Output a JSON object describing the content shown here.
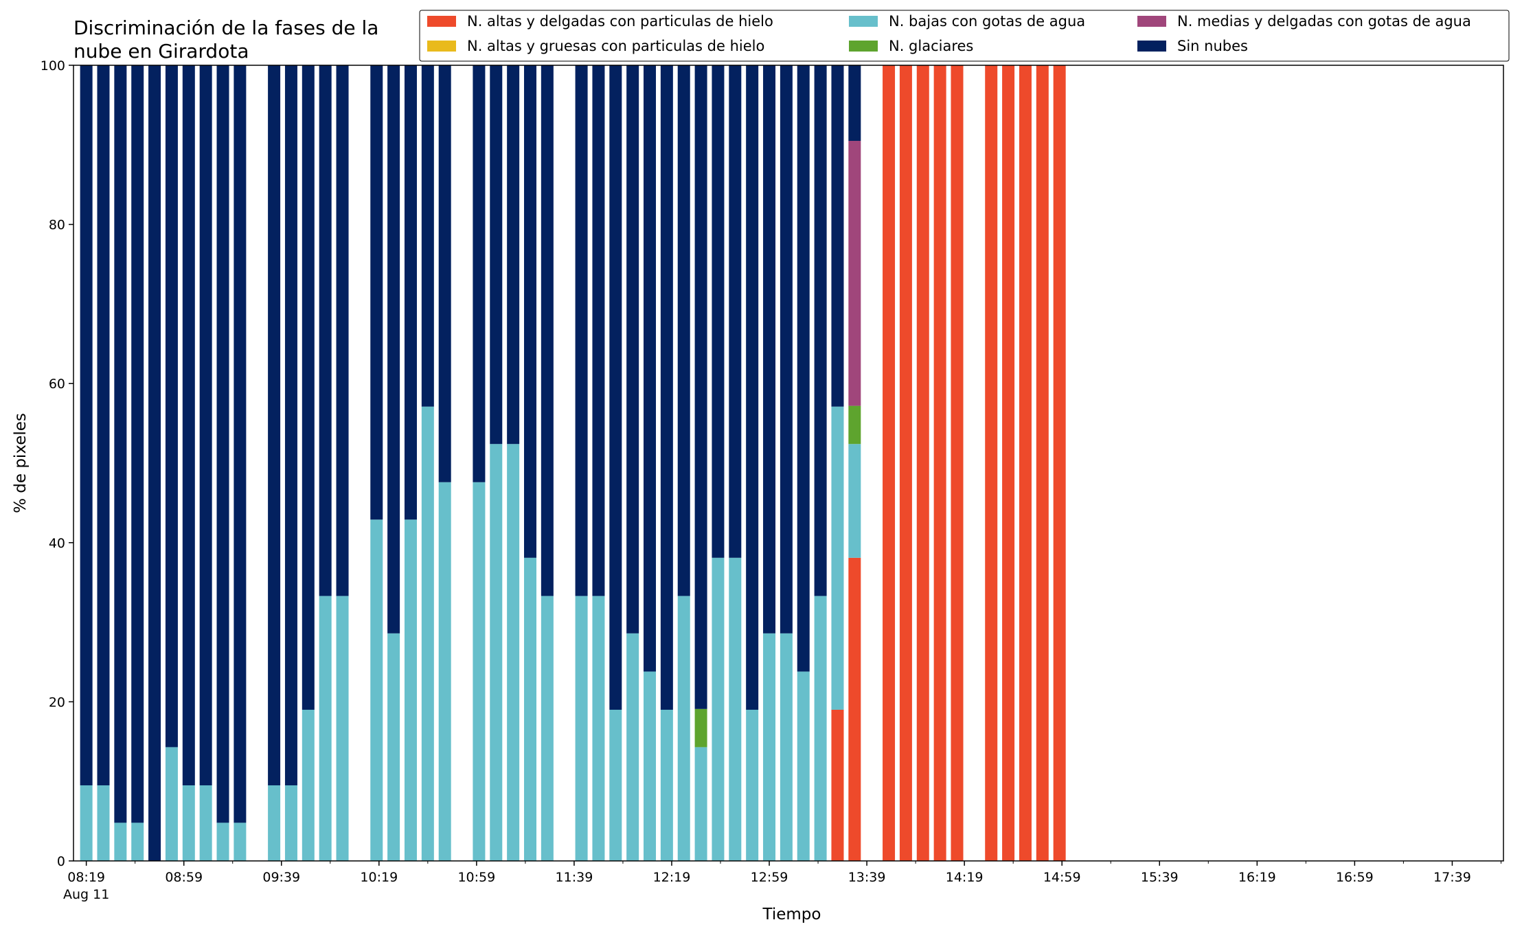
{
  "chart_data": {
    "type": "bar",
    "stacked": true,
    "title_lines": [
      "Discriminación de la fases de la",
      "nube en Girardota"
    ],
    "xlabel": "Tiempo",
    "ylabel": "% de pixeles",
    "ylim": [
      0,
      100
    ],
    "yticks": [
      "0",
      "20",
      "40",
      "60",
      "80",
      "100"
    ],
    "x_start": "08:19",
    "x_step_minutes": 7,
    "x_end": "18:00",
    "xtick_labels": [
      {
        "time": "08:19",
        "label": "08:19",
        "sublabel": "Aug 11"
      },
      {
        "time": "08:59",
        "label": "08:59"
      },
      {
        "time": "09:39",
        "label": "09:39"
      },
      {
        "time": "10:19",
        "label": "10:19"
      },
      {
        "time": "10:59",
        "label": "10:59"
      },
      {
        "time": "11:39",
        "label": "11:39"
      },
      {
        "time": "12:19",
        "label": "12:19"
      },
      {
        "time": "12:59",
        "label": "12:59"
      },
      {
        "time": "13:39",
        "label": "13:39"
      },
      {
        "time": "14:19",
        "label": "14:19"
      },
      {
        "time": "14:59",
        "label": "14:59"
      },
      {
        "time": "15:39",
        "label": "15:39"
      },
      {
        "time": "16:19",
        "label": "16:19"
      },
      {
        "time": "16:59",
        "label": "16:59"
      },
      {
        "time": "17:39",
        "label": "17:39"
      }
    ],
    "minor_tick_times": [
      "08:39",
      "09:19",
      "09:59",
      "10:39",
      "11:19",
      "11:59",
      "12:39",
      "13:19",
      "13:59",
      "14:39",
      "15:19",
      "15:59",
      "16:39",
      "17:19",
      "17:59"
    ],
    "legend_placement": "top-right",
    "legend_columns": 3,
    "grid": false,
    "series": [
      {
        "name": "N. altas y delgadas con particulas de hielo",
        "color": "#ee4a2b"
      },
      {
        "name": "N. altas y gruesas con particulas de hielo",
        "color": "#e9ba1c"
      },
      {
        "name": "N. bajas con gotas de agua",
        "color": "#67bfcb"
      },
      {
        "name": "N. glaciares",
        "color": "#5ea42e"
      },
      {
        "name": "N. medias y delgadas con gotas de agua",
        "color": "#a0467b"
      },
      {
        "name": "Sin nubes",
        "color": "#03215f"
      }
    ],
    "stack_order": [
      "N. altas y delgadas con particulas de hielo",
      "N. altas y gruesas con particulas de hielo",
      "N. bajas con gotas de agua",
      "N. glaciares",
      "N. medias y delgadas con gotas de agua",
      "Sin nubes"
    ],
    "bars": [
      {
        "time": "08:19",
        "values": [
          0,
          0,
          9.5,
          0,
          0,
          90.5
        ]
      },
      {
        "time": "08:26",
        "values": [
          0,
          0,
          9.5,
          0,
          0,
          90.5
        ]
      },
      {
        "time": "08:33",
        "values": [
          0,
          0,
          4.8,
          0,
          0,
          95.2
        ]
      },
      {
        "time": "08:40",
        "values": [
          0,
          0,
          4.8,
          0,
          0,
          95.2
        ]
      },
      {
        "time": "08:47",
        "values": [
          0,
          0,
          0,
          0,
          0,
          100
        ]
      },
      {
        "time": "08:54",
        "values": [
          0,
          0,
          14.3,
          0,
          0,
          85.7
        ]
      },
      {
        "time": "09:01",
        "values": [
          0,
          0,
          9.5,
          0,
          0,
          90.5
        ]
      },
      {
        "time": "09:08",
        "values": [
          0,
          0,
          9.5,
          0,
          0,
          90.5
        ]
      },
      {
        "time": "09:15",
        "values": [
          0,
          0,
          4.8,
          0,
          0,
          95.2
        ]
      },
      {
        "time": "09:22",
        "values": [
          0,
          0,
          4.8,
          0,
          0,
          95.2
        ]
      },
      {
        "time": "09:36",
        "values": [
          0,
          0,
          9.5,
          0,
          0,
          90.5
        ]
      },
      {
        "time": "09:43",
        "values": [
          0,
          0,
          9.5,
          0,
          0,
          90.5
        ]
      },
      {
        "time": "09:50",
        "values": [
          0,
          0,
          19.0,
          0,
          0,
          81.0
        ]
      },
      {
        "time": "09:57",
        "values": [
          0,
          0,
          33.3,
          0,
          0,
          66.7
        ]
      },
      {
        "time": "10:04",
        "values": [
          0,
          0,
          33.3,
          0,
          0,
          66.7
        ]
      },
      {
        "time": "10:18",
        "values": [
          0,
          0,
          42.9,
          0,
          0,
          57.1
        ]
      },
      {
        "time": "10:25",
        "values": [
          0,
          0,
          28.6,
          0,
          0,
          71.4
        ]
      },
      {
        "time": "10:32",
        "values": [
          0,
          0,
          42.9,
          0,
          0,
          57.1
        ]
      },
      {
        "time": "10:39",
        "values": [
          0,
          0,
          57.1,
          0,
          0,
          42.9
        ]
      },
      {
        "time": "10:46",
        "values": [
          0,
          0,
          47.6,
          0,
          0,
          52.4
        ]
      },
      {
        "time": "11:00",
        "values": [
          0,
          0,
          47.6,
          0,
          0,
          52.4
        ]
      },
      {
        "time": "11:07",
        "values": [
          0,
          0,
          52.4,
          0,
          0,
          47.6
        ]
      },
      {
        "time": "11:14",
        "values": [
          0,
          0,
          52.4,
          0,
          0,
          47.6
        ]
      },
      {
        "time": "11:21",
        "values": [
          0,
          0,
          38.1,
          0,
          0,
          61.9
        ]
      },
      {
        "time": "11:28",
        "values": [
          0,
          0,
          33.3,
          0,
          0,
          66.7
        ]
      },
      {
        "time": "11:42",
        "values": [
          0,
          0,
          33.3,
          0,
          0,
          66.7
        ]
      },
      {
        "time": "11:49",
        "values": [
          0,
          0,
          33.3,
          0,
          0,
          66.7
        ]
      },
      {
        "time": "11:56",
        "values": [
          0,
          0,
          19.0,
          0,
          0,
          81.0
        ]
      },
      {
        "time": "12:03",
        "values": [
          0,
          0,
          28.6,
          0,
          0,
          71.4
        ]
      },
      {
        "time": "12:10",
        "values": [
          0,
          0,
          23.8,
          0,
          0,
          76.2
        ]
      },
      {
        "time": "12:17",
        "values": [
          0,
          0,
          19.0,
          0,
          0,
          81.0
        ]
      },
      {
        "time": "12:24",
        "values": [
          0,
          0,
          33.3,
          0,
          0,
          66.7
        ]
      },
      {
        "time": "12:31",
        "values": [
          0,
          0,
          14.3,
          4.8,
          0,
          80.9
        ]
      },
      {
        "time": "12:38",
        "values": [
          0,
          0,
          38.1,
          0,
          0,
          61.9
        ]
      },
      {
        "time": "12:45",
        "values": [
          0,
          0,
          38.1,
          0,
          0,
          61.9
        ]
      },
      {
        "time": "12:52",
        "values": [
          0,
          0,
          19.0,
          0,
          0,
          81.0
        ]
      },
      {
        "time": "12:59",
        "values": [
          0,
          0,
          28.6,
          0,
          0,
          71.4
        ]
      },
      {
        "time": "13:06",
        "values": [
          0,
          0,
          28.6,
          0,
          0,
          71.4
        ]
      },
      {
        "time": "13:13",
        "values": [
          0,
          0,
          23.8,
          0,
          0,
          76.2
        ]
      },
      {
        "time": "13:20",
        "values": [
          0,
          0,
          33.3,
          0,
          0,
          66.7
        ]
      },
      {
        "time": "13:27",
        "values": [
          19.0,
          0,
          38.1,
          0,
          0,
          42.9
        ]
      },
      {
        "time": "13:34",
        "values": [
          38.1,
          0,
          14.3,
          4.8,
          33.3,
          9.5
        ]
      },
      {
        "time": "13:48",
        "values": [
          100,
          0,
          0,
          0,
          0,
          0
        ]
      },
      {
        "time": "13:55",
        "values": [
          100,
          0,
          0,
          0,
          0,
          0
        ]
      },
      {
        "time": "14:02",
        "values": [
          100,
          0,
          0,
          0,
          0,
          0
        ]
      },
      {
        "time": "14:09",
        "values": [
          100,
          0,
          0,
          0,
          0,
          0
        ]
      },
      {
        "time": "14:16",
        "values": [
          100,
          0,
          0,
          0,
          0,
          0
        ]
      },
      {
        "time": "14:30",
        "values": [
          100,
          0,
          0,
          0,
          0,
          0
        ]
      },
      {
        "time": "14:37",
        "values": [
          100,
          0,
          0,
          0,
          0,
          0
        ]
      },
      {
        "time": "14:44",
        "values": [
          100,
          0,
          0,
          0,
          0,
          0
        ]
      },
      {
        "time": "14:51",
        "values": [
          100,
          0,
          0,
          0,
          0,
          0
        ]
      },
      {
        "time": "14:58",
        "values": [
          100,
          0,
          0,
          0,
          0,
          0
        ]
      }
    ]
  }
}
